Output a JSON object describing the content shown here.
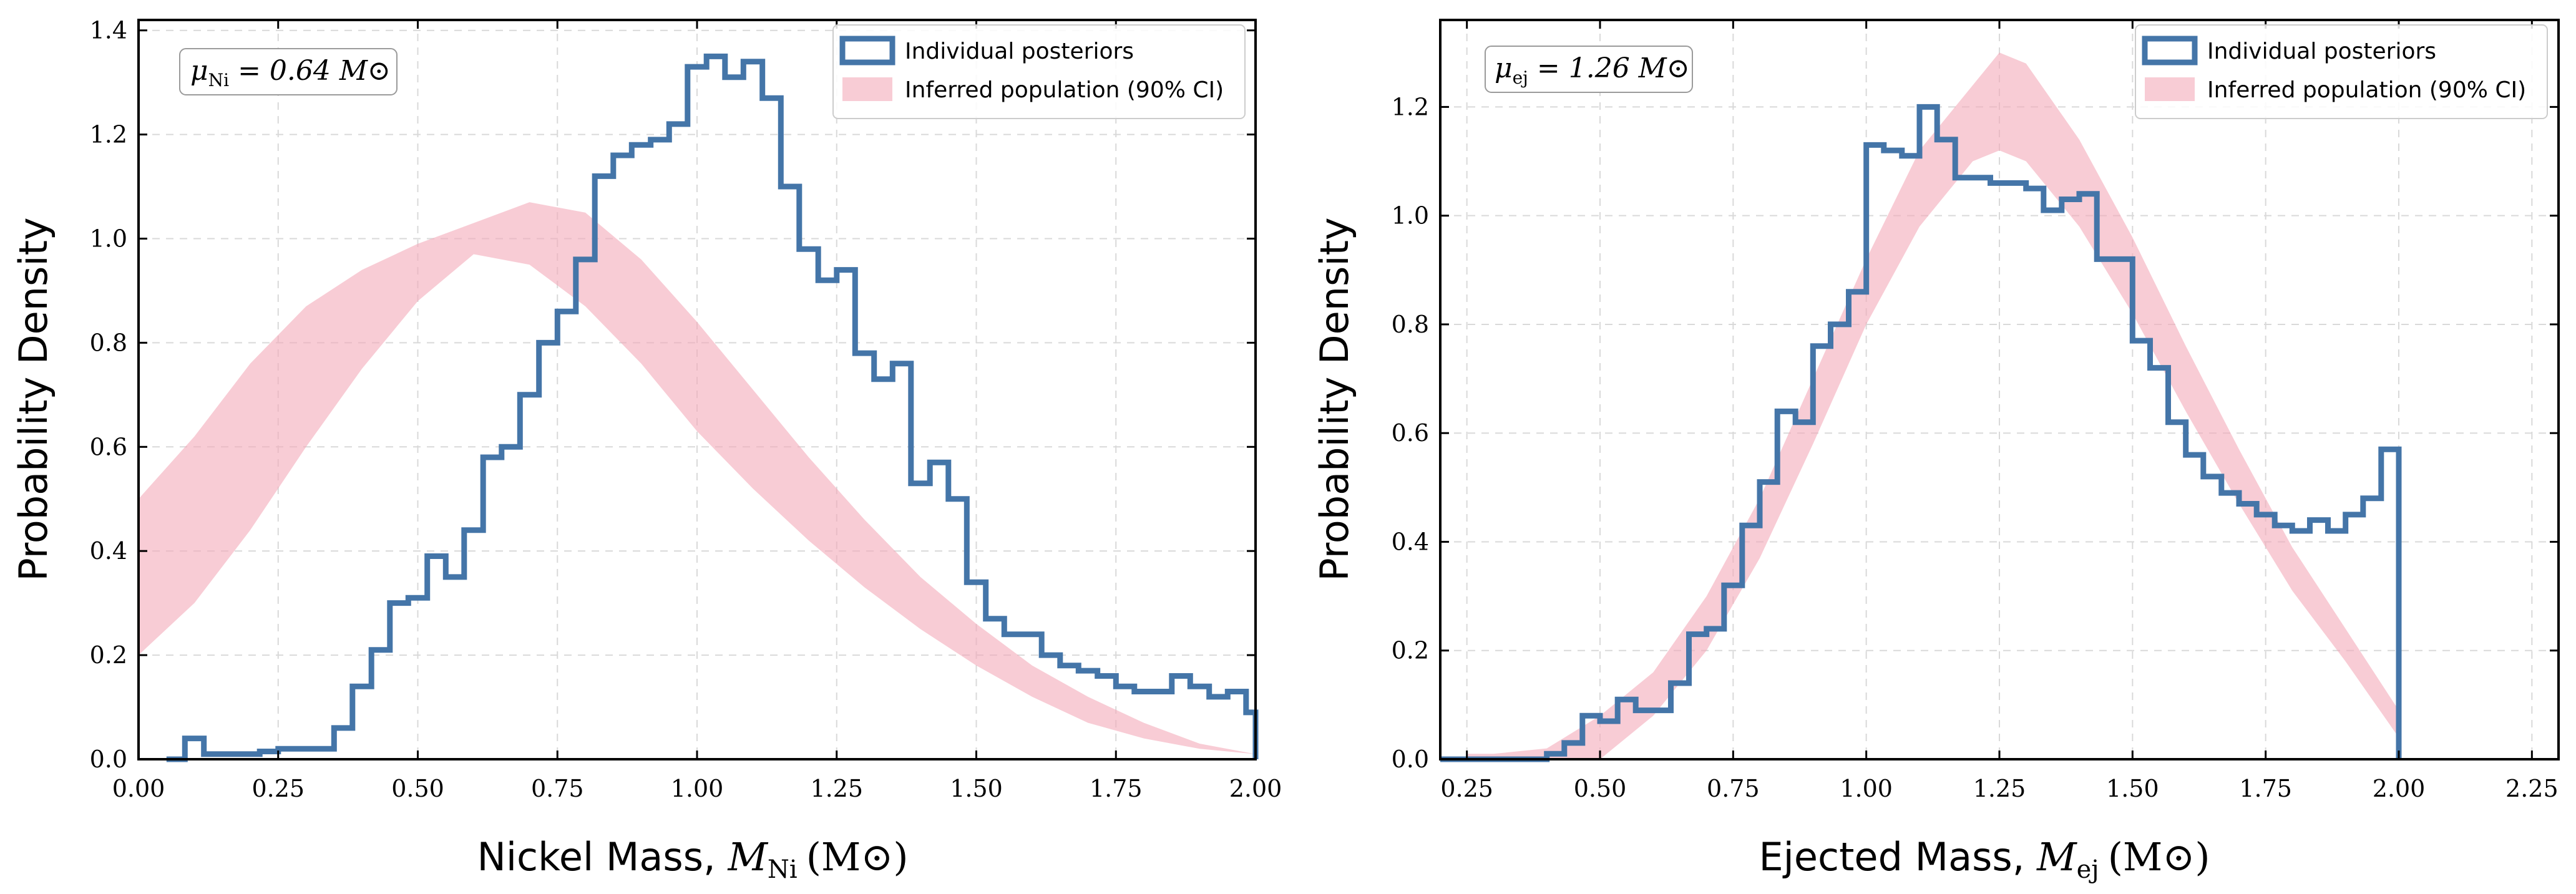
{
  "chart_data": [
    {
      "type": "histogram_with_band",
      "title": "",
      "xlabel": "Nickel Mass, ",
      "xlabel_math_symbol": "M",
      "xlabel_math_sub": "Ni",
      "xlabel_unit": "(M⊙)",
      "ylabel": "Probability Density",
      "xlim": [
        0.0,
        2.0
      ],
      "ylim": [
        0.0,
        1.42
      ],
      "xticks": [
        0.0,
        0.25,
        0.5,
        0.75,
        1.0,
        1.25,
        1.5,
        1.75,
        2.0
      ],
      "xtick_labels": [
        "0.00",
        "0.25",
        "0.50",
        "0.75",
        "1.00",
        "1.25",
        "1.50",
        "1.75",
        "2.00"
      ],
      "yticks": [
        0.0,
        0.2,
        0.4,
        0.6,
        0.8,
        1.0,
        1.2,
        1.4
      ],
      "ytick_labels": [
        "0.0",
        "0.2",
        "0.4",
        "0.6",
        "0.8",
        "1.0",
        "1.2",
        "1.4"
      ],
      "grid": true,
      "legend_position": "top-right",
      "annotation": {
        "symbol": "μ",
        "sub": "Ni",
        "rest": " = 0.64 M⊙"
      },
      "series": [
        {
          "name": "Individual posteriors",
          "kind": "step",
          "color": "#4475a8",
          "bin_edges": [
            0.05,
            0.083,
            0.117,
            0.15,
            0.183,
            0.217,
            0.25,
            0.283,
            0.317,
            0.35,
            0.383,
            0.417,
            0.45,
            0.483,
            0.517,
            0.55,
            0.583,
            0.617,
            0.65,
            0.683,
            0.717,
            0.75,
            0.783,
            0.817,
            0.85,
            0.883,
            0.917,
            0.95,
            0.983,
            1.017,
            1.05,
            1.083,
            1.117,
            1.15,
            1.183,
            1.217,
            1.25,
            1.283,
            1.317,
            1.35,
            1.383,
            1.417,
            1.45,
            1.483,
            1.517,
            1.55,
            1.583,
            1.617,
            1.65,
            1.683,
            1.717,
            1.75,
            1.783,
            1.817,
            1.85,
            1.883,
            1.917,
            1.95,
            1.983,
            2.0
          ],
          "values": [
            0.0,
            0.04,
            0.01,
            0.01,
            0.01,
            0.015,
            0.02,
            0.02,
            0.02,
            0.06,
            0.14,
            0.21,
            0.3,
            0.31,
            0.39,
            0.35,
            0.44,
            0.58,
            0.6,
            0.7,
            0.8,
            0.86,
            0.96,
            1.12,
            1.16,
            1.18,
            1.19,
            1.22,
            1.33,
            1.35,
            1.31,
            1.34,
            1.27,
            1.1,
            0.98,
            0.92,
            0.94,
            0.78,
            0.73,
            0.76,
            0.53,
            0.57,
            0.5,
            0.34,
            0.27,
            0.24,
            0.24,
            0.2,
            0.18,
            0.17,
            0.16,
            0.14,
            0.13,
            0.13,
            0.16,
            0.14,
            0.12,
            0.13,
            0.09
          ]
        },
        {
          "name": "Inferred population (90% CI)",
          "kind": "band",
          "color": "#f4aab9",
          "x": [
            0.0,
            0.1,
            0.2,
            0.3,
            0.4,
            0.5,
            0.6,
            0.7,
            0.8,
            0.9,
            1.0,
            1.1,
            1.2,
            1.3,
            1.4,
            1.5,
            1.6,
            1.7,
            1.8,
            1.9,
            2.0
          ],
          "lower": [
            0.2,
            0.3,
            0.44,
            0.6,
            0.75,
            0.88,
            0.97,
            0.95,
            0.87,
            0.76,
            0.63,
            0.52,
            0.42,
            0.33,
            0.25,
            0.18,
            0.12,
            0.07,
            0.04,
            0.02,
            0.01
          ],
          "upper": [
            0.5,
            0.62,
            0.76,
            0.87,
            0.94,
            0.99,
            1.03,
            1.07,
            1.05,
            0.96,
            0.84,
            0.71,
            0.58,
            0.46,
            0.35,
            0.26,
            0.18,
            0.12,
            0.07,
            0.03,
            0.01
          ]
        }
      ]
    },
    {
      "type": "histogram_with_band",
      "title": "",
      "xlabel": "Ejected Mass, ",
      "xlabel_math_symbol": "M",
      "xlabel_math_sub": "ej",
      "xlabel_unit": "(M⊙)",
      "ylabel": "Probability Density",
      "xlim": [
        0.2,
        2.3
      ],
      "ylim": [
        0.0,
        1.36
      ],
      "xticks": [
        0.25,
        0.5,
        0.75,
        1.0,
        1.25,
        1.5,
        1.75,
        2.0,
        2.25
      ],
      "xtick_labels": [
        "0.25",
        "0.50",
        "0.75",
        "1.00",
        "1.25",
        "1.50",
        "1.75",
        "2.00",
        "2.25"
      ],
      "yticks": [
        0.0,
        0.2,
        0.4,
        0.6,
        0.8,
        1.0,
        1.2
      ],
      "ytick_labels": [
        "0.0",
        "0.2",
        "0.4",
        "0.6",
        "0.8",
        "1.0",
        "1.2"
      ],
      "grid": true,
      "legend_position": "top-right",
      "annotation": {
        "symbol": "μ",
        "sub": "ej",
        "rest": " = 1.26 M⊙"
      },
      "series": [
        {
          "name": "Individual posteriors",
          "kind": "step",
          "color": "#4475a8",
          "bin_edges": [
            0.2,
            0.233,
            0.267,
            0.3,
            0.333,
            0.367,
            0.4,
            0.433,
            0.467,
            0.5,
            0.533,
            0.567,
            0.6,
            0.633,
            0.667,
            0.7,
            0.733,
            0.767,
            0.8,
            0.833,
            0.867,
            0.9,
            0.933,
            0.967,
            1.0,
            1.033,
            1.067,
            1.1,
            1.133,
            1.167,
            1.2,
            1.233,
            1.267,
            1.3,
            1.333,
            1.367,
            1.4,
            1.433,
            1.467,
            1.5,
            1.533,
            1.567,
            1.6,
            1.633,
            1.667,
            1.7,
            1.733,
            1.767,
            1.8,
            1.833,
            1.867,
            1.9,
            1.933,
            1.967,
            2.0
          ],
          "values": [
            0.0,
            0.0,
            0.0,
            0.0,
            0.0,
            0.0,
            0.01,
            0.03,
            0.08,
            0.07,
            0.11,
            0.09,
            0.09,
            0.14,
            0.23,
            0.24,
            0.32,
            0.43,
            0.51,
            0.64,
            0.62,
            0.76,
            0.8,
            0.86,
            1.13,
            1.12,
            1.11,
            1.2,
            1.14,
            1.07,
            1.07,
            1.06,
            1.06,
            1.05,
            1.01,
            1.03,
            1.04,
            0.92,
            0.92,
            0.77,
            0.72,
            0.62,
            0.56,
            0.52,
            0.49,
            0.47,
            0.45,
            0.43,
            0.42,
            0.44,
            0.42,
            0.45,
            0.48,
            0.57
          ]
        },
        {
          "name": "Inferred population (90% CI)",
          "kind": "band",
          "color": "#f4aab9",
          "x": [
            0.25,
            0.3,
            0.4,
            0.5,
            0.6,
            0.7,
            0.8,
            0.9,
            1.0,
            1.1,
            1.2,
            1.25,
            1.3,
            1.4,
            1.5,
            1.6,
            1.7,
            1.8,
            1.9,
            2.0
          ],
          "lower": [
            0.0,
            0.0,
            0.0,
            0.0,
            0.08,
            0.2,
            0.37,
            0.58,
            0.8,
            0.98,
            1.1,
            1.12,
            1.1,
            0.98,
            0.82,
            0.64,
            0.47,
            0.31,
            0.18,
            0.04
          ],
          "upper": [
            0.01,
            0.01,
            0.02,
            0.08,
            0.16,
            0.3,
            0.48,
            0.7,
            0.92,
            1.12,
            1.24,
            1.3,
            1.28,
            1.14,
            0.96,
            0.76,
            0.57,
            0.39,
            0.24,
            0.09
          ]
        }
      ]
    }
  ]
}
